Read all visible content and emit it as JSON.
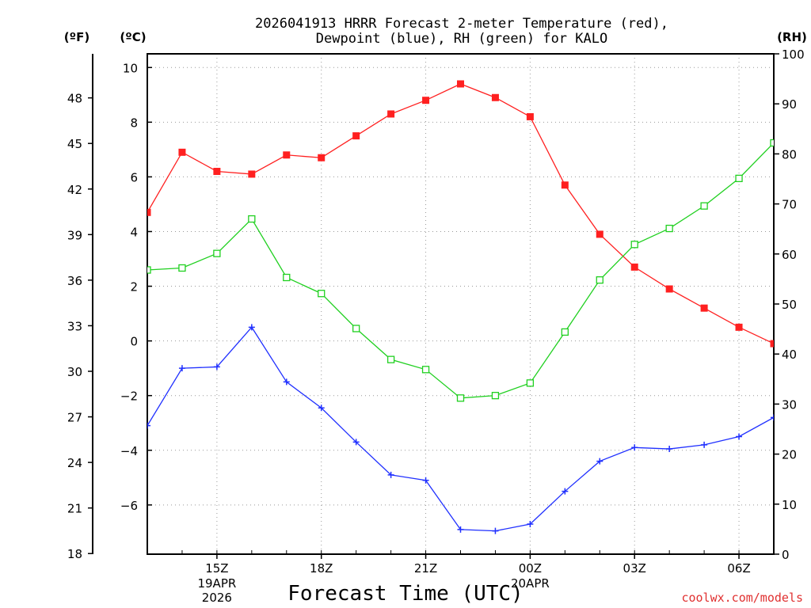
{
  "chart_data": {
    "type": "line",
    "title_line1": "2026041913 HRRR Forecast 2-meter Temperature (red),",
    "title_line2": "Dewpoint (blue), RH (green) for KALO",
    "xlabel": "Forecast Time (UTC)",
    "credit": "coolwx.com/models",
    "units": {
      "fahrenheit": "(ºF)",
      "celsius": "(ºC)",
      "rh": "(RH)"
    },
    "x_hours": [
      13,
      14,
      15,
      16,
      17,
      18,
      19,
      20,
      21,
      22,
      23,
      24,
      25,
      26,
      27,
      28,
      29,
      30,
      31
    ],
    "xlim": [
      13,
      31
    ],
    "x_ticks": [
      {
        "hour": 15,
        "label": "15Z",
        "sub1": "19APR",
        "sub2": "2026"
      },
      {
        "hour": 18,
        "label": "18Z"
      },
      {
        "hour": 21,
        "label": "21Z"
      },
      {
        "hour": 24,
        "label": "00Z",
        "sub1": "20APR"
      },
      {
        "hour": 27,
        "label": "03Z"
      },
      {
        "hour": 30,
        "label": "06Z"
      }
    ],
    "celsius_axis": {
      "ylim": [
        -7.8,
        10.5
      ],
      "ticks": [
        "10",
        "8",
        "6",
        "4",
        "2",
        "0",
        "−2",
        "−4",
        "−6"
      ],
      "tick_values": [
        10,
        8,
        6,
        4,
        2,
        0,
        -2,
        -4,
        -6
      ]
    },
    "fahrenheit_axis": {
      "ticks": [
        "48",
        "45",
        "42",
        "39",
        "36",
        "33",
        "30",
        "27",
        "24",
        "21",
        "18"
      ],
      "tick_values": [
        48,
        45,
        42,
        39,
        36,
        33,
        30,
        27,
        24,
        21,
        18
      ]
    },
    "rh_axis": {
      "ylim": [
        0,
        100
      ],
      "ticks": [
        "100",
        "90",
        "80",
        "70",
        "60",
        "50",
        "40",
        "30",
        "20",
        "10",
        "0"
      ],
      "tick_values": [
        100,
        90,
        80,
        70,
        60,
        50,
        40,
        30,
        20,
        10,
        0
      ]
    },
    "series": [
      {
        "name": "Temperature",
        "unit": "C",
        "color": "#ff2020",
        "marker": "filled-square",
        "values": [
          4.7,
          6.9,
          6.2,
          6.1,
          6.8,
          6.7,
          7.5,
          8.3,
          8.8,
          9.4,
          8.9,
          8.2,
          5.7,
          3.9,
          2.7,
          1.9,
          1.2,
          0.5,
          -0.1
        ]
      },
      {
        "name": "Dewpoint",
        "unit": "C",
        "color": "#2030ff",
        "marker": "plus",
        "values": [
          -3.1,
          -1.0,
          -0.95,
          0.5,
          -1.5,
          -2.45,
          -3.7,
          -4.9,
          -5.1,
          -6.9,
          -6.95,
          -6.7,
          -5.5,
          -4.4,
          -3.9,
          -3.95,
          -3.8,
          -3.5,
          -2.8
        ]
      },
      {
        "name": "RH",
        "unit": "%",
        "color": "#20d020",
        "marker": "open-square",
        "values": [
          56.8,
          57.2,
          60.1,
          67.0,
          55.3,
          52.1,
          45.1,
          38.9,
          36.9,
          31.2,
          31.7,
          34.2,
          44.4,
          54.8,
          61.9,
          65.1,
          69.6,
          75.1,
          82.2
        ]
      }
    ]
  }
}
